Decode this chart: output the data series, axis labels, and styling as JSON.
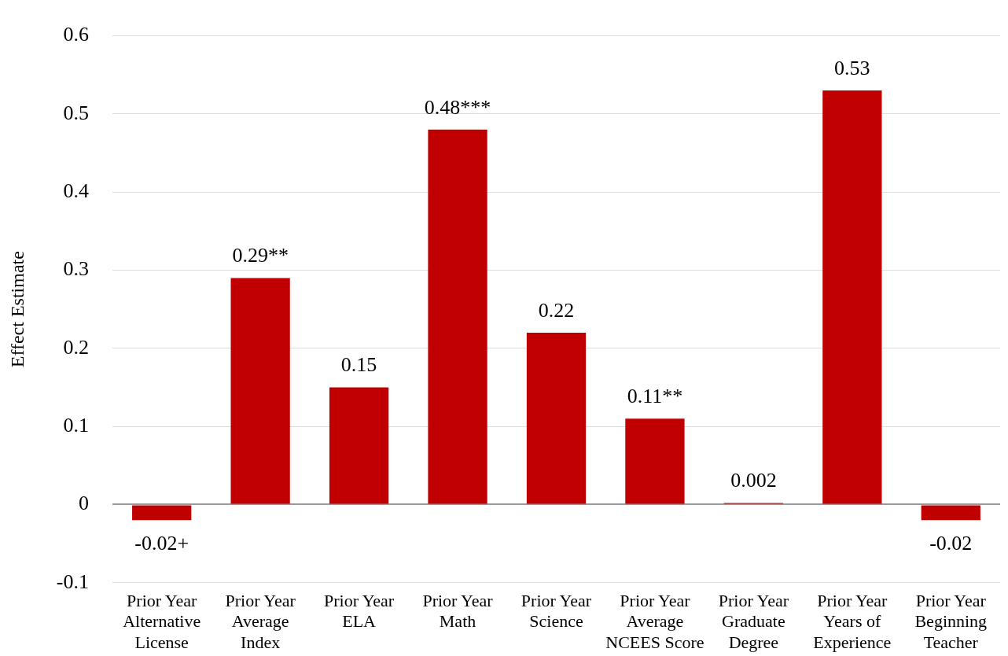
{
  "chart_data": {
    "type": "bar",
    "ylabel": "Effect Estimate",
    "categories": [
      "Prior Year Alternative License",
      "Prior Year Average Index",
      "Prior Year ELA",
      "Prior Year Math",
      "Prior Year Science",
      "Prior Year Average NCEES Score",
      "Prior Year Graduate Degree",
      "Prior Year Years of Experience",
      "Prior Year Beginning Teacher"
    ],
    "values": [
      -0.02,
      0.29,
      0.15,
      0.48,
      0.22,
      0.11,
      0.002,
      0.53,
      -0.02
    ],
    "value_labels": [
      "-0.02+",
      "0.29**",
      "0.15",
      "0.48***",
      "0.22",
      "0.11**",
      "0.002",
      "0.53",
      "-0.02"
    ],
    "color": "#c00000",
    "ylim": [
      -0.1,
      0.6
    ],
    "yticks": [
      -0.1,
      0,
      0.1,
      0.2,
      0.3,
      0.4,
      0.5,
      0.6
    ],
    "grid": "y",
    "legend": false
  }
}
